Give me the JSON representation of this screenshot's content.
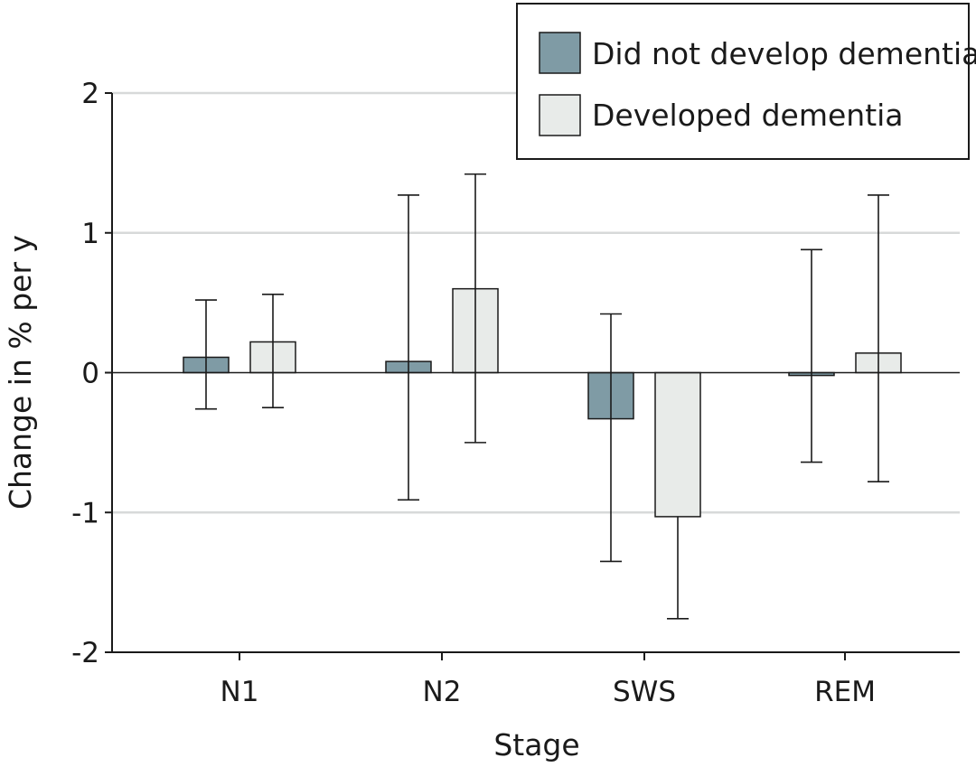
{
  "chart_data": {
    "type": "bar",
    "title": "",
    "xlabel": "Stage",
    "ylabel": "Change in % per y",
    "categories": [
      "N1",
      "N2",
      "SWS",
      "REM"
    ],
    "ylim": [
      -2,
      2
    ],
    "yticks": [
      2,
      1,
      0,
      -1,
      -2
    ],
    "ytick_labels": [
      "2",
      "1",
      "0",
      "-1",
      "-2"
    ],
    "grid": true,
    "legend_position": "top-right",
    "series": [
      {
        "name": "Did not develop dementia",
        "color": "#7f9ba5",
        "values": [
          0.11,
          0.08,
          -0.33,
          -0.02
        ],
        "error_low": [
          -0.26,
          -0.91,
          -1.35,
          -0.64
        ],
        "error_high": [
          0.52,
          1.27,
          0.42,
          0.88
        ]
      },
      {
        "name": "Developed dementia",
        "color": "#e8ebe9",
        "values": [
          0.22,
          0.6,
          -1.03,
          0.14
        ],
        "error_low": [
          -0.25,
          -0.5,
          -1.76,
          -0.78
        ],
        "error_high": [
          0.56,
          1.42,
          null,
          1.27
        ]
      }
    ]
  }
}
